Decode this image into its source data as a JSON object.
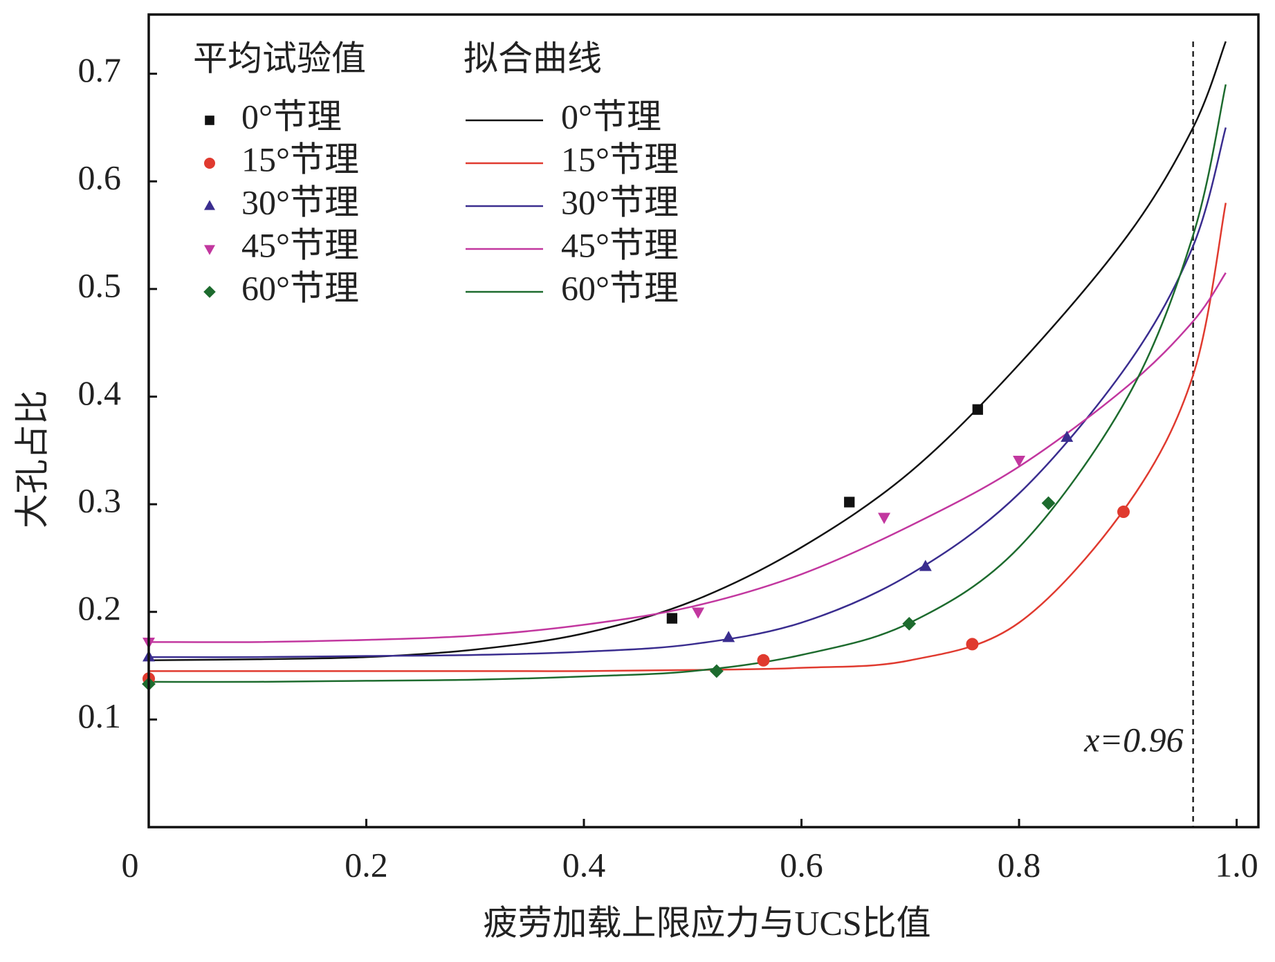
{
  "chart_data": {
    "type": "scatter-fit",
    "xlabel": "疲劳加载上限应力与UCS比值",
    "ylabel": "大孔占比",
    "xlim": [
      0,
      1.02
    ],
    "ylim": [
      0,
      0.755
    ],
    "xticks": [
      0,
      0.2,
      0.4,
      0.6,
      0.8,
      {
        "value": 1,
        "label": "1.0"
      }
    ],
    "yticks": [
      0.1,
      0.2,
      0.3,
      0.4,
      0.5,
      0.6,
      0.7
    ],
    "legend_titles": [
      "平均试验值",
      "拟合曲线"
    ],
    "series": [
      {
        "name": "0°节理",
        "color": "#111111",
        "marker": "square",
        "x": [
          0.481,
          0.644,
          0.762
        ],
        "values": [
          0.194,
          0.302,
          0.388
        ]
      },
      {
        "name": "15°节理",
        "color": "#e03a2f",
        "marker": "circle",
        "x": [
          0,
          0.565,
          0.757,
          0.896
        ],
        "values": [
          0.138,
          0.155,
          0.17,
          0.293
        ]
      },
      {
        "name": "30°节理",
        "color": "#3a2d8f",
        "marker": "triangle-up",
        "x": [
          0,
          0.533,
          0.714,
          0.844
        ],
        "values": [
          0.158,
          0.176,
          0.242,
          0.362
        ]
      },
      {
        "name": "45°节理",
        "color": "#c2379f",
        "marker": "triangle-down",
        "x": [
          0,
          0.505,
          0.676,
          0.8
        ],
        "values": [
          0.172,
          0.2,
          0.288,
          0.341
        ]
      },
      {
        "name": "60°节理",
        "color": "#1d6b2e",
        "marker": "diamond",
        "x": [
          0,
          0.522,
          0.699,
          0.827
        ],
        "values": [
          0.133,
          0.145,
          0.189,
          0.301
        ]
      }
    ],
    "fits": [
      {
        "name": "0°节理",
        "color": "#111111",
        "x": [
          0,
          0.1,
          0.2,
          0.3,
          0.4,
          0.5,
          0.6,
          0.7,
          0.8,
          0.9,
          0.96,
          0.99
        ],
        "values": [
          0.155,
          0.156,
          0.158,
          0.165,
          0.18,
          0.21,
          0.26,
          0.33,
          0.43,
          0.55,
          0.65,
          0.73
        ]
      },
      {
        "name": "15°节理",
        "color": "#e03a2f",
        "x": [
          0,
          0.1,
          0.2,
          0.3,
          0.4,
          0.5,
          0.6,
          0.7,
          0.8,
          0.9,
          0.96,
          0.99
        ],
        "values": [
          0.145,
          0.145,
          0.145,
          0.145,
          0.145,
          0.146,
          0.148,
          0.155,
          0.19,
          0.3,
          0.42,
          0.58
        ]
      },
      {
        "name": "30°节理",
        "color": "#3a2d8f",
        "x": [
          0,
          0.1,
          0.2,
          0.3,
          0.4,
          0.5,
          0.6,
          0.7,
          0.8,
          0.9,
          0.96,
          0.99
        ],
        "values": [
          0.158,
          0.158,
          0.159,
          0.16,
          0.163,
          0.17,
          0.19,
          0.235,
          0.31,
          0.43,
          0.54,
          0.65
        ]
      },
      {
        "name": "45°节理",
        "color": "#c2379f",
        "x": [
          0,
          0.1,
          0.2,
          0.3,
          0.4,
          0.5,
          0.6,
          0.7,
          0.8,
          0.9,
          0.96,
          0.99
        ],
        "values": [
          0.172,
          0.172,
          0.174,
          0.178,
          0.188,
          0.205,
          0.235,
          0.28,
          0.335,
          0.41,
          0.47,
          0.515
        ]
      },
      {
        "name": "60°节理",
        "color": "#1d6b2e",
        "x": [
          0,
          0.1,
          0.2,
          0.3,
          0.4,
          0.5,
          0.6,
          0.7,
          0.8,
          0.9,
          0.96,
          0.99
        ],
        "values": [
          0.135,
          0.135,
          0.136,
          0.137,
          0.14,
          0.145,
          0.16,
          0.19,
          0.26,
          0.4,
          0.55,
          0.69
        ]
      }
    ],
    "vline": 0.96,
    "annotation": "x=0.96"
  }
}
